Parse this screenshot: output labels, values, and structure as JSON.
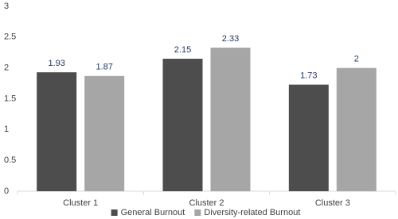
{
  "chart_data": {
    "type": "bar",
    "categories": [
      "Cluster 1",
      "Cluster 2",
      "Cluster 3"
    ],
    "series": [
      {
        "name": "General Burnout",
        "color": "#4d4d4d",
        "values": [
          1.93,
          2.15,
          1.73
        ]
      },
      {
        "name": "Diversity-related Burnout",
        "color": "#a6a6a6",
        "values": [
          1.87,
          2.33,
          2
        ]
      }
    ],
    "ylim": [
      0,
      3
    ],
    "yticks": [
      0,
      0.5,
      1,
      1.5,
      2,
      2.5,
      3
    ],
    "grid": false,
    "legend": "bottom"
  }
}
